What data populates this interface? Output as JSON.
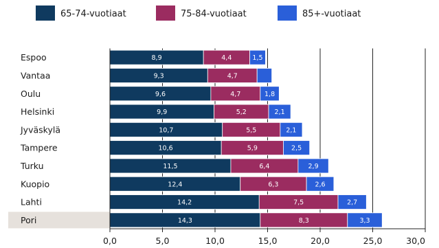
{
  "chart_data": {
    "type": "bar",
    "orientation": "horizontal",
    "stacked": true,
    "categories": [
      "Espoo",
      "Vantaa",
      "Oulu",
      "Helsinki",
      "Jyväskylä",
      "Tampere",
      "Turku",
      "Kuopio",
      "Lahti",
      "Pori"
    ],
    "highlighted_category": "Pori",
    "series": [
      {
        "name": "65-74-vuotiaat",
        "color": "#0f3a5f",
        "values": [
          8.9,
          9.3,
          9.6,
          9.9,
          10.7,
          10.6,
          11.5,
          12.4,
          14.2,
          14.3
        ],
        "labels": [
          "8,9",
          "9,3",
          "9,6",
          "9,9",
          "10,7",
          "10,6",
          "11,5",
          "12,4",
          "14,2",
          "14,3"
        ]
      },
      {
        "name": "75-84-vuotiaat",
        "color": "#9b2c60",
        "values": [
          4.4,
          4.7,
          4.7,
          5.2,
          5.5,
          5.9,
          6.4,
          6.3,
          7.5,
          8.3
        ],
        "labels": [
          "4,4",
          "4,7",
          "4,7",
          "5,2",
          "5,5",
          "5,9",
          "6,4",
          "6,3",
          "7,5",
          "8,3"
        ]
      },
      {
        "name": "85+-vuotiaat",
        "color": "#2a5fd9",
        "values": [
          1.5,
          1.4,
          1.8,
          2.1,
          2.1,
          2.5,
          2.9,
          2.6,
          2.7,
          3.3
        ],
        "labels": [
          "1,5",
          "",
          "1,8",
          "2,1",
          "2,1",
          "2,5",
          "2,9",
          "2,6",
          "2,7",
          "3,3"
        ]
      }
    ],
    "xlim": [
      0,
      30
    ],
    "xticks": [
      0,
      5,
      10,
      15,
      20,
      25,
      30
    ],
    "xtick_labels": [
      "0,0",
      "5,0",
      "10,0",
      "15,0",
      "20,0",
      "25,0",
      "30,0"
    ],
    "grid": true,
    "legend_position": "top"
  }
}
